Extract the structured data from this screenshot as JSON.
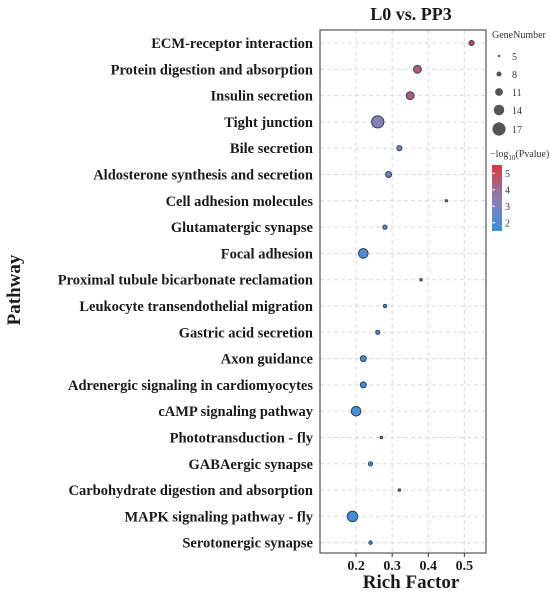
{
  "chart_data": {
    "type": "scatter",
    "title": "L0 vs. PP3",
    "xlabel": "Rich Factor",
    "ylabel": "Pathway",
    "xlim": [
      0.1,
      0.56
    ],
    "x_ticks": [
      0.2,
      0.3,
      0.4,
      0.5
    ],
    "x_tick_labels": [
      "0.2",
      "0.3",
      "0.4",
      "0.5"
    ],
    "grid": true,
    "categories": [
      "ECM-receptor interaction",
      "Protein digestion and absorption",
      "Insulin secretion",
      "Tight junction",
      "Bile secretion",
      "Aldosterone synthesis and secretion",
      "Cell adhesion molecules",
      "Glutamatergic synapse",
      "Focal adhesion",
      "Proximal tubule bicarbonate reclamation",
      "Leukocyte transendothelial migration",
      "Gastric acid secretion",
      "Axon guidance",
      "Adrenergic signaling in cardiomyocytes",
      "cAMP signaling pathway",
      "Phototransduction - fly",
      "GABAergic synapse",
      "Carbohydrate digestion and absorption",
      "MAPK signaling pathway - fly",
      "Serotonergic synapse"
    ],
    "points": [
      {
        "pathway": "ECM-receptor interaction",
        "rich_factor": 0.52,
        "gene_number": 8,
        "neg_log10_pvalue": 5.2
      },
      {
        "pathway": "Protein digestion and absorption",
        "rich_factor": 0.37,
        "gene_number": 11,
        "neg_log10_pvalue": 4.5
      },
      {
        "pathway": "Insulin secretion",
        "rich_factor": 0.35,
        "gene_number": 11,
        "neg_log10_pvalue": 4.4
      },
      {
        "pathway": "Tight junction",
        "rich_factor": 0.26,
        "gene_number": 16,
        "neg_log10_pvalue": 3.2
      },
      {
        "pathway": "Bile secretion",
        "rich_factor": 0.32,
        "gene_number": 8,
        "neg_log10_pvalue": 2.8
      },
      {
        "pathway": "Aldosterone synthesis and secretion",
        "rich_factor": 0.29,
        "gene_number": 9,
        "neg_log10_pvalue": 2.7
      },
      {
        "pathway": "Cell adhesion molecules",
        "rich_factor": 0.45,
        "gene_number": 5,
        "neg_log10_pvalue": 2.5
      },
      {
        "pathway": "Glutamatergic synapse",
        "rich_factor": 0.28,
        "gene_number": 7,
        "neg_log10_pvalue": 2.3
      },
      {
        "pathway": "Focal adhesion",
        "rich_factor": 0.22,
        "gene_number": 13,
        "neg_log10_pvalue": 2.0
      },
      {
        "pathway": "Proximal tubule bicarbonate reclamation",
        "rich_factor": 0.38,
        "gene_number": 5,
        "neg_log10_pvalue": 2.3
      },
      {
        "pathway": "Leukocyte transendothelial migration",
        "rich_factor": 0.28,
        "gene_number": 6,
        "neg_log10_pvalue": 2.1
      },
      {
        "pathway": "Gastric acid secretion",
        "rich_factor": 0.26,
        "gene_number": 7,
        "neg_log10_pvalue": 2.1
      },
      {
        "pathway": "Axon guidance",
        "rich_factor": 0.22,
        "gene_number": 9,
        "neg_log10_pvalue": 1.9
      },
      {
        "pathway": "Adrenergic signaling in cardiomyocytes",
        "rich_factor": 0.22,
        "gene_number": 9,
        "neg_log10_pvalue": 1.9
      },
      {
        "pathway": "cAMP signaling pathway",
        "rich_factor": 0.2,
        "gene_number": 13,
        "neg_log10_pvalue": 1.8
      },
      {
        "pathway": "Phototransduction - fly",
        "rich_factor": 0.27,
        "gene_number": 5,
        "neg_log10_pvalue": 2.0
      },
      {
        "pathway": "GABAergic synapse",
        "rich_factor": 0.24,
        "gene_number": 7,
        "neg_log10_pvalue": 1.9
      },
      {
        "pathway": "Carbohydrate digestion and absorption",
        "rich_factor": 0.32,
        "gene_number": 5,
        "neg_log10_pvalue": 1.9
      },
      {
        "pathway": "MAPK signaling pathway - fly",
        "rich_factor": 0.19,
        "gene_number": 14,
        "neg_log10_pvalue": 1.7
      },
      {
        "pathway": "Serotonergic synapse",
        "rich_factor": 0.24,
        "gene_number": 6,
        "neg_log10_pvalue": 1.8
      }
    ],
    "size_legend": {
      "title": "GeneNumber",
      "values": [
        5,
        8,
        11,
        14,
        17
      ],
      "labels": [
        "5",
        "8",
        "11",
        "14",
        "17"
      ]
    },
    "color_legend": {
      "title_prefix": "−log",
      "title_subscript": "10",
      "title_suffix": "(Pvalue)",
      "ticks": [
        5,
        4,
        3,
        2
      ],
      "tick_labels": [
        "5",
        "4",
        "3",
        "2"
      ],
      "range": [
        1.5,
        5.5
      ],
      "low_color": "#3a8fd9",
      "mid_color": "#8c7fb0",
      "high_color": "#d6393c"
    },
    "colors": {
      "grid": "#d9d9d9",
      "panel_border": "#333333",
      "point_stroke": "#2f3f55"
    }
  }
}
